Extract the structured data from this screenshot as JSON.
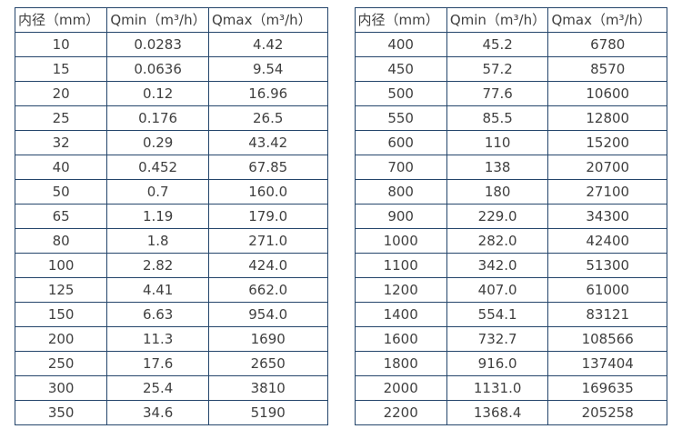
{
  "tables": [
    {
      "name": "flow-rate-table-small-diameters",
      "headers": [
        "内径（mm）",
        "Qmin（m³/h）",
        "Qmax（m³/h）"
      ],
      "rows": [
        [
          "10",
          "0.0283",
          "4.42"
        ],
        [
          "15",
          "0.0636",
          "9.54"
        ],
        [
          "20",
          "0.12",
          "16.96"
        ],
        [
          "25",
          "0.176",
          "26.5"
        ],
        [
          "32",
          "0.29",
          "43.42"
        ],
        [
          "40",
          "0.452",
          "67.85"
        ],
        [
          "50",
          "0.7",
          "160.0"
        ],
        [
          "65",
          "1.19",
          "179.0"
        ],
        [
          "80",
          "1.8",
          "271.0"
        ],
        [
          "100",
          "2.82",
          "424.0"
        ],
        [
          "125",
          "4.41",
          "662.0"
        ],
        [
          "150",
          "6.63",
          "954.0"
        ],
        [
          "200",
          "11.3",
          "1690"
        ],
        [
          "250",
          "17.6",
          "2650"
        ],
        [
          "300",
          "25.4",
          "3810"
        ],
        [
          "350",
          "34.6",
          "5190"
        ]
      ]
    },
    {
      "name": "flow-rate-table-large-diameters",
      "headers": [
        "内径（mm）",
        "Qmin（m³/h）",
        "Qmax（m³/h）"
      ],
      "rows": [
        [
          "400",
          "45.2",
          "6780"
        ],
        [
          "450",
          "57.2",
          "8570"
        ],
        [
          "500",
          "77.6",
          "10600"
        ],
        [
          "550",
          "85.5",
          "12800"
        ],
        [
          "600",
          "110",
          "15200"
        ],
        [
          "700",
          "138",
          "20700"
        ],
        [
          "800",
          "180",
          "27100"
        ],
        [
          "900",
          "229.0",
          "34300"
        ],
        [
          "1000",
          "282.0",
          "42400"
        ],
        [
          "1100",
          "342.0",
          "51300"
        ],
        [
          "1200",
          "407.0",
          "61000"
        ],
        [
          "1400",
          "554.1",
          "83121"
        ],
        [
          "1600",
          "732.7",
          "108566"
        ],
        [
          "1800",
          "916.0",
          "137404"
        ],
        [
          "2000",
          "1131.0",
          "169635"
        ],
        [
          "2200",
          "1368.4",
          "205258"
        ]
      ]
    }
  ],
  "colors": {
    "border": "#24456b",
    "text": "#404040",
    "background": "#ffffff"
  },
  "column_semantics": [
    "inner-diameter-mm",
    "qmin-m3-per-h",
    "qmax-m3-per-h"
  ]
}
